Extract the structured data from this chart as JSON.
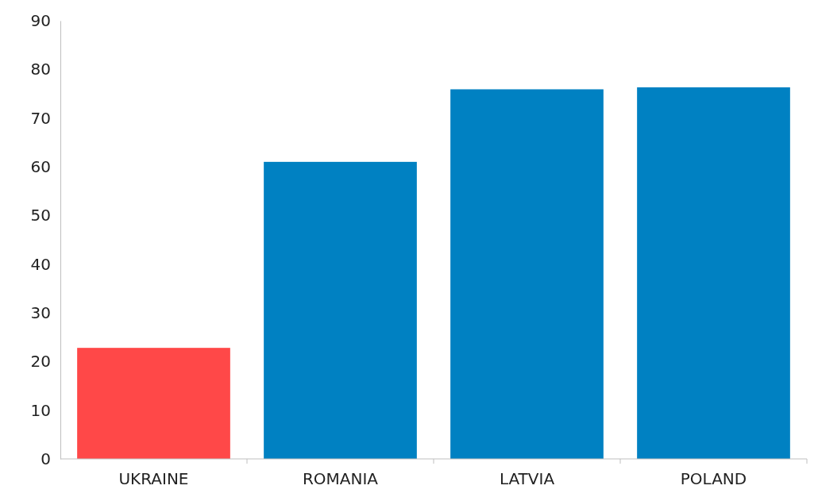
{
  "chart_data": {
    "type": "bar",
    "categories": [
      "UKRAINE",
      "ROMANIA",
      "LATVIA",
      "POLAND"
    ],
    "values": [
      22.8,
      61,
      75.9,
      76.3
    ],
    "colors": [
      "#ff4848",
      "#0081c2",
      "#0081c2",
      "#0081c2"
    ],
    "ylim": [
      0,
      90
    ],
    "yticks": [
      0,
      10,
      20,
      30,
      40,
      50,
      60,
      70,
      80,
      90
    ],
    "grid": false
  }
}
